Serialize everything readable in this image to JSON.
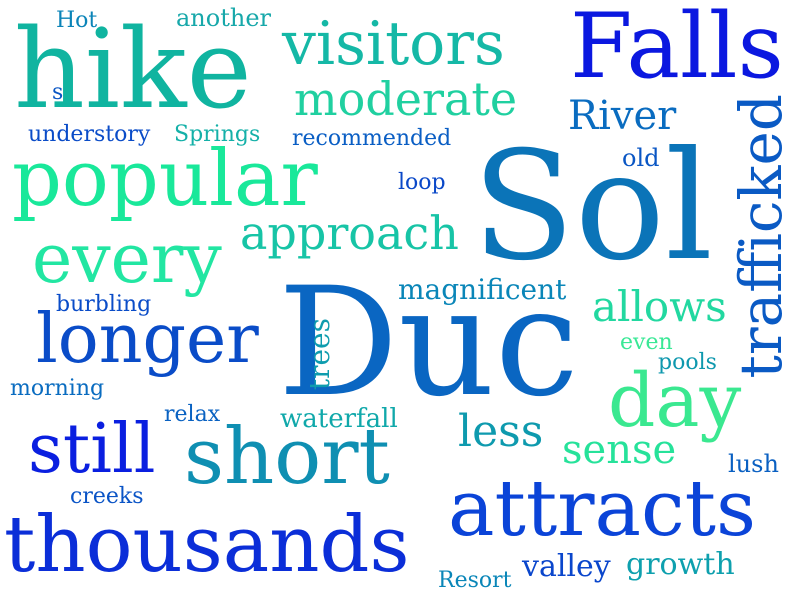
{
  "words": [
    {
      "text": "Duc",
      "color": "#0a66c2"
    },
    {
      "text": "Sol",
      "color": "#0b74b8"
    },
    {
      "text": "hike",
      "color": "#10b4a0"
    },
    {
      "text": "Falls",
      "color": "#0b18e0"
    },
    {
      "text": "popular",
      "color": "#19e89a"
    },
    {
      "text": "visitors",
      "color": "#15b8a6"
    },
    {
      "text": "thousands",
      "color": "#0b2ed8"
    },
    {
      "text": "attracts",
      "color": "#0b44d8"
    },
    {
      "text": "short",
      "color": "#0f8fb2"
    },
    {
      "text": "longer",
      "color": "#0a4cc8"
    },
    {
      "text": "every",
      "color": "#22e6a2"
    },
    {
      "text": "still",
      "color": "#0a1fe0"
    },
    {
      "text": "trafficked",
      "color": "#0a5ac4"
    },
    {
      "text": "day",
      "color": "#3ae890"
    },
    {
      "text": "moderate",
      "color": "#20d0a0"
    },
    {
      "text": "approach",
      "color": "#17c4a6"
    },
    {
      "text": "allows",
      "color": "#22d8a0"
    },
    {
      "text": "less",
      "color": "#0e9aae"
    },
    {
      "text": "sense",
      "color": "#26e29a"
    },
    {
      "text": "River",
      "color": "#0a6cc0"
    },
    {
      "text": "magnificent",
      "color": "#0a86b8"
    },
    {
      "text": "waterfall",
      "color": "#10a8aa"
    },
    {
      "text": "trees",
      "color": "#0e9cae"
    },
    {
      "text": "another",
      "color": "#17a8aa"
    },
    {
      "text": "Hot",
      "color": "#0b84b8"
    },
    {
      "text": "s",
      "color": "#0a56c4"
    },
    {
      "text": "understory",
      "color": "#0a4cc8"
    },
    {
      "text": "Springs",
      "color": "#14b0a8"
    },
    {
      "text": "recommended",
      "color": "#0a5ec4"
    },
    {
      "text": "old",
      "color": "#0a56c4"
    },
    {
      "text": "loop",
      "color": "#0a48c8"
    },
    {
      "text": "burbling",
      "color": "#0a4cc8"
    },
    {
      "text": "morning",
      "color": "#0a6cc0"
    },
    {
      "text": "relax",
      "color": "#0a62c2"
    },
    {
      "text": "even",
      "color": "#3ae896"
    },
    {
      "text": "pools",
      "color": "#0e98ae"
    },
    {
      "text": "lush",
      "color": "#0a60c2"
    },
    {
      "text": "creeks",
      "color": "#0a54c6"
    },
    {
      "text": "valley",
      "color": "#0a46cc"
    },
    {
      "text": "growth",
      "color": "#0ea0ae"
    },
    {
      "text": "Resort",
      "color": "#0a86b8"
    }
  ]
}
